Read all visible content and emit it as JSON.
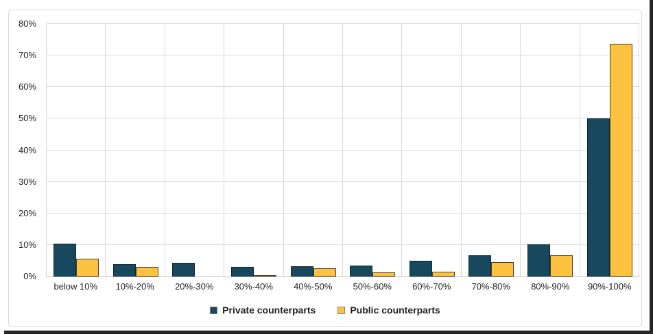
{
  "chart_data": {
    "type": "bar",
    "title": "",
    "xlabel": "",
    "ylabel": "",
    "categories": [
      "below 10%",
      "10%-20%",
      "20%-30%",
      "30%-40%",
      "40%-50%",
      "50%-60%",
      "60%-70%",
      "70%-80%",
      "80%-90%",
      "90%-100%"
    ],
    "series": [
      {
        "name": "Private counterparts",
        "color": "#17485E",
        "border_color": "#0E2631",
        "values": [
          10.4,
          3.8,
          4.4,
          3.0,
          3.2,
          3.5,
          4.9,
          6.7,
          10.2,
          50.0
        ]
      },
      {
        "name": "Public counterparts",
        "color": "#FCC240",
        "border_color": "#494125",
        "values": [
          5.6,
          3.0,
          0,
          0.4,
          2.7,
          1.2,
          1.5,
          4.6,
          6.7,
          73.7
        ]
      }
    ],
    "ylim": [
      0,
      80
    ],
    "ytick_step": 10,
    "ytick_suffix": "%",
    "grid": "on",
    "legend_position": "bottom"
  },
  "colors": {
    "background": "#FFFFFF",
    "frame_border": "#D8D8D8",
    "gridline": "#D9D9D9",
    "axis_line": "#BFBFBF",
    "text": "#1F1F1F",
    "page_edge": "#262626",
    "legend_swatch_border": "#808080"
  }
}
